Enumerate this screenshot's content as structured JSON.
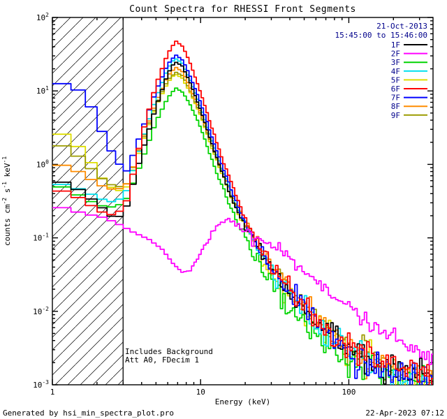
{
  "footer": {
    "left": "Generated by hsi_min_spectra_plot.pro",
    "right": "22-Apr-2023 07:12"
  },
  "colors": {
    "background": "#FFFFFF",
    "axis": "#000000",
    "datetime_text": "#00008B",
    "text": "#000000"
  },
  "chart_data": {
    "type": "line",
    "mode": "histogram-steps",
    "title": "Count Spectra for RHESSI Front Segments",
    "xlabel": "Energy (keV)",
    "ylabel": "counts cm^-2 s^-1 keV^-1",
    "xscale": "log",
    "yscale": "log",
    "xlim": [
      1,
      370
    ],
    "ylim": [
      0.001,
      100
    ],
    "x_major_ticks": [
      1,
      10,
      100
    ],
    "y_major_ticks": [
      0.001,
      0.01,
      0.1,
      1,
      10,
      100
    ],
    "grid": false,
    "hatched_region_kev": [
      1,
      3
    ],
    "legend_position": "top-right",
    "annotations": {
      "date": "21-Oct-2013",
      "time_range": "15:45:00 to 15:46:00",
      "note_line1": "Includes Background",
      "note_line2": "Att A0, FDecim 1"
    },
    "series": [
      {
        "name": "1F",
        "color": "#000000",
        "anchors": [
          [
            1,
            0.6
          ],
          [
            1.3,
            0.55
          ],
          [
            1.7,
            0.38
          ],
          [
            2.2,
            0.25
          ],
          [
            2.7,
            0.17
          ],
          [
            3.2,
            0.28
          ],
          [
            4,
            1.4
          ],
          [
            5,
            6
          ],
          [
            6,
            17
          ],
          [
            6.7,
            25
          ],
          [
            7.5,
            22
          ],
          [
            8.5,
            13
          ],
          [
            10,
            5.5
          ],
          [
            12,
            1.8
          ],
          [
            14,
            0.75
          ],
          [
            17,
            0.28
          ],
          [
            20,
            0.14
          ],
          [
            25,
            0.065
          ],
          [
            30,
            0.036
          ],
          [
            40,
            0.018
          ],
          [
            50,
            0.011
          ],
          [
            70,
            0.0055
          ],
          [
            100,
            0.003
          ],
          [
            150,
            0.0022
          ],
          [
            200,
            0.0018
          ],
          [
            300,
            0.0014
          ],
          [
            370,
            0.0013
          ]
        ]
      },
      {
        "name": "2F",
        "color": "#FF00FF",
        "anchors": [
          [
            1,
            0.28
          ],
          [
            1.3,
            0.24
          ],
          [
            1.7,
            0.21
          ],
          [
            2.2,
            0.19
          ],
          [
            2.7,
            0.16
          ],
          [
            3.5,
            0.12
          ],
          [
            4.5,
            0.095
          ],
          [
            5.5,
            0.07
          ],
          [
            6.5,
            0.045
          ],
          [
            7.5,
            0.034
          ],
          [
            8.5,
            0.036
          ],
          [
            10,
            0.06
          ],
          [
            12,
            0.12
          ],
          [
            14,
            0.17
          ],
          [
            15.5,
            0.19
          ],
          [
            17,
            0.17
          ],
          [
            19,
            0.13
          ],
          [
            22,
            0.1
          ],
          [
            26,
            0.088
          ],
          [
            30,
            0.078
          ],
          [
            40,
            0.052
          ],
          [
            50,
            0.036
          ],
          [
            70,
            0.021
          ],
          [
            100,
            0.011
          ],
          [
            130,
            0.0075
          ],
          [
            170,
            0.0055
          ],
          [
            220,
            0.004
          ],
          [
            300,
            0.0028
          ],
          [
            370,
            0.0023
          ]
        ]
      },
      {
        "name": "3F",
        "color": "#00D400",
        "anchors": [
          [
            1,
            0.55
          ],
          [
            1.3,
            0.45
          ],
          [
            1.7,
            0.33
          ],
          [
            2.2,
            0.27
          ],
          [
            2.7,
            0.26
          ],
          [
            3.2,
            0.35
          ],
          [
            4,
            1.1
          ],
          [
            5,
            3.8
          ],
          [
            6,
            8
          ],
          [
            6.8,
            11
          ],
          [
            7.6,
            9.5
          ],
          [
            8.5,
            6.5
          ],
          [
            10,
            3.2
          ],
          [
            12,
            1.1
          ],
          [
            14,
            0.5
          ],
          [
            17,
            0.2
          ],
          [
            20,
            0.1
          ],
          [
            25,
            0.045
          ],
          [
            30,
            0.024
          ],
          [
            40,
            0.012
          ],
          [
            50,
            0.007
          ],
          [
            70,
            0.0036
          ],
          [
            100,
            0.0021
          ],
          [
            150,
            0.0015
          ],
          [
            200,
            0.0012
          ],
          [
            300,
            0.001
          ],
          [
            370,
            0.0009
          ]
        ]
      },
      {
        "name": "4F",
        "color": "#00E0EE",
        "anchors": [
          [
            1,
            0.55
          ],
          [
            1.3,
            0.52
          ],
          [
            1.7,
            0.42
          ],
          [
            2.2,
            0.33
          ],
          [
            2.7,
            0.3
          ],
          [
            3.2,
            0.45
          ],
          [
            4,
            2.0
          ],
          [
            5,
            8
          ],
          [
            6,
            20
          ],
          [
            6.7,
            28
          ],
          [
            7.5,
            24
          ],
          [
            8.5,
            14
          ],
          [
            10,
            6
          ],
          [
            12,
            2.0
          ],
          [
            14,
            0.85
          ],
          [
            17,
            0.32
          ],
          [
            20,
            0.15
          ],
          [
            25,
            0.068
          ],
          [
            30,
            0.037
          ],
          [
            40,
            0.018
          ],
          [
            50,
            0.011
          ],
          [
            70,
            0.005
          ],
          [
            100,
            0.0026
          ],
          [
            150,
            0.0018
          ],
          [
            200,
            0.0015
          ],
          [
            300,
            0.0012
          ],
          [
            370,
            0.0011
          ]
        ]
      },
      {
        "name": "5F",
        "color": "#DEDE00",
        "anchors": [
          [
            1,
            2.8
          ],
          [
            1.3,
            2.4
          ],
          [
            1.7,
            1.3
          ],
          [
            2.2,
            0.62
          ],
          [
            2.7,
            0.42
          ],
          [
            3.2,
            0.5
          ],
          [
            4,
            1.8
          ],
          [
            5,
            6.2
          ],
          [
            6,
            13
          ],
          [
            6.7,
            17
          ],
          [
            7.5,
            15
          ],
          [
            8.5,
            9.5
          ],
          [
            10,
            4.6
          ],
          [
            12,
            1.6
          ],
          [
            14,
            0.72
          ],
          [
            17,
            0.28
          ],
          [
            20,
            0.14
          ],
          [
            25,
            0.062
          ],
          [
            30,
            0.035
          ],
          [
            40,
            0.017
          ],
          [
            50,
            0.01
          ],
          [
            70,
            0.005
          ],
          [
            100,
            0.0027
          ],
          [
            150,
            0.0019
          ],
          [
            200,
            0.0015
          ],
          [
            300,
            0.0012
          ],
          [
            370,
            0.0011
          ]
        ]
      },
      {
        "name": "6F",
        "color": "#FF0000",
        "anchors": [
          [
            1,
            0.45
          ],
          [
            1.3,
            0.42
          ],
          [
            1.7,
            0.3
          ],
          [
            2.2,
            0.22
          ],
          [
            2.7,
            0.2
          ],
          [
            3.2,
            0.33
          ],
          [
            4,
            2.4
          ],
          [
            5,
            12
          ],
          [
            6,
            32
          ],
          [
            6.8,
            48
          ],
          [
            7.6,
            40
          ],
          [
            8.5,
            24
          ],
          [
            10,
            9.5
          ],
          [
            12,
            3.0
          ],
          [
            14,
            1.2
          ],
          [
            17,
            0.42
          ],
          [
            20,
            0.18
          ],
          [
            25,
            0.08
          ],
          [
            30,
            0.042
          ],
          [
            40,
            0.02
          ],
          [
            50,
            0.012
          ],
          [
            70,
            0.0058
          ],
          [
            100,
            0.0031
          ],
          [
            150,
            0.0022
          ],
          [
            200,
            0.0018
          ],
          [
            300,
            0.0014
          ],
          [
            370,
            0.0013
          ]
        ]
      },
      {
        "name": "7F",
        "color": "#0000FF",
        "anchors": [
          [
            1,
            13
          ],
          [
            1.4,
            12
          ],
          [
            1.8,
            6.5
          ],
          [
            2.2,
            2.6
          ],
          [
            2.7,
            1.1
          ],
          [
            3.2,
            0.8
          ],
          [
            4,
            2.8
          ],
          [
            5,
            10
          ],
          [
            6,
            23
          ],
          [
            6.8,
            31
          ],
          [
            7.6,
            26
          ],
          [
            8.5,
            16
          ],
          [
            10,
            7
          ],
          [
            12,
            2.3
          ],
          [
            14,
            0.95
          ],
          [
            17,
            0.35
          ],
          [
            20,
            0.16
          ],
          [
            25,
            0.07
          ],
          [
            30,
            0.04
          ],
          [
            40,
            0.019
          ],
          [
            50,
            0.011
          ],
          [
            70,
            0.0052
          ],
          [
            100,
            0.0027
          ],
          [
            150,
            0.0018
          ],
          [
            200,
            0.0014
          ],
          [
            300,
            0.0011
          ],
          [
            370,
            0.001
          ]
        ]
      },
      {
        "name": "8F",
        "color": "#FF8C00",
        "anchors": [
          [
            1,
            1.0
          ],
          [
            1.3,
            0.95
          ],
          [
            1.7,
            0.68
          ],
          [
            2.2,
            0.5
          ],
          [
            2.7,
            0.44
          ],
          [
            3.2,
            0.55
          ],
          [
            4,
            2.0
          ],
          [
            5,
            7
          ],
          [
            6,
            16
          ],
          [
            6.8,
            21
          ],
          [
            7.6,
            18
          ],
          [
            8.5,
            11
          ],
          [
            10,
            5.2
          ],
          [
            12,
            1.8
          ],
          [
            14,
            0.8
          ],
          [
            17,
            0.32
          ],
          [
            20,
            0.16
          ],
          [
            25,
            0.075
          ],
          [
            30,
            0.044
          ],
          [
            40,
            0.022
          ],
          [
            50,
            0.013
          ],
          [
            70,
            0.006
          ],
          [
            100,
            0.0032
          ],
          [
            150,
            0.0023
          ],
          [
            200,
            0.0018
          ],
          [
            300,
            0.0015
          ],
          [
            370,
            0.0014
          ]
        ]
      },
      {
        "name": "9F",
        "color": "#9C9C00",
        "anchors": [
          [
            1,
            1.9
          ],
          [
            1.3,
            1.7
          ],
          [
            1.7,
            1.0
          ],
          [
            2.2,
            0.62
          ],
          [
            2.7,
            0.48
          ],
          [
            3.2,
            0.55
          ],
          [
            4,
            1.9
          ],
          [
            5,
            6.5
          ],
          [
            6,
            14
          ],
          [
            6.8,
            18
          ],
          [
            7.6,
            16
          ],
          [
            8.5,
            10
          ],
          [
            10,
            4.8
          ],
          [
            12,
            1.7
          ],
          [
            14,
            0.78
          ],
          [
            17,
            0.3
          ],
          [
            20,
            0.15
          ],
          [
            25,
            0.07
          ],
          [
            30,
            0.042
          ],
          [
            40,
            0.021
          ],
          [
            50,
            0.013
          ],
          [
            70,
            0.006
          ],
          [
            100,
            0.0032
          ],
          [
            150,
            0.0023
          ],
          [
            200,
            0.0018
          ],
          [
            300,
            0.0015
          ],
          [
            370,
            0.0013
          ]
        ]
      }
    ]
  }
}
